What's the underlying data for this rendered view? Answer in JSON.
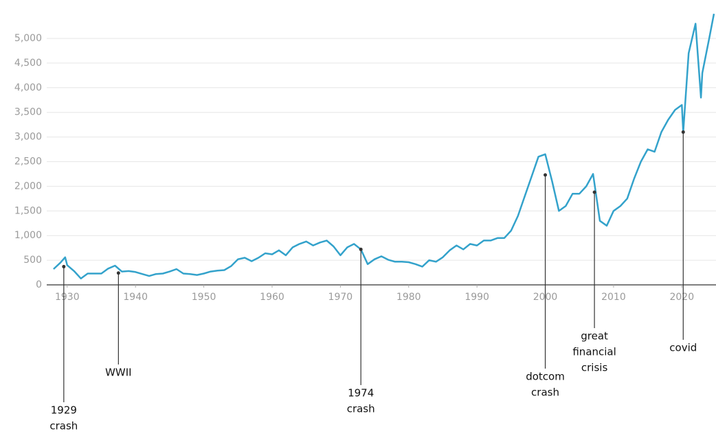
{
  "chart_data": {
    "type": "line",
    "x": [
      1928,
      1929,
      1929.7,
      1930,
      1931,
      1932,
      1933,
      1934,
      1935,
      1936,
      1937,
      1938,
      1939,
      1940,
      1941,
      1942,
      1943,
      1944,
      1945,
      1946,
      1947,
      1948,
      1949,
      1950,
      1951,
      1952,
      1953,
      1954,
      1955,
      1956,
      1957,
      1958,
      1959,
      1960,
      1961,
      1962,
      1963,
      1964,
      1965,
      1966,
      1967,
      1968,
      1969,
      1970,
      1971,
      1972,
      1973,
      1974,
      1975,
      1976,
      1977,
      1978,
      1979,
      1980,
      1981,
      1982,
      1983,
      1984,
      1985,
      1986,
      1987,
      1988,
      1989,
      1990,
      1991,
      1992,
      1993,
      1994,
      1995,
      1996,
      1997,
      1998,
      1999,
      2000,
      2001,
      2002,
      2003,
      2004,
      2005,
      2006,
      2007,
      2008,
      2009,
      2010,
      2011,
      2012,
      2013,
      2014,
      2015,
      2016,
      2017,
      2018,
      2019,
      2020,
      2020.2,
      2021,
      2022,
      2022.8,
      2023,
      2024,
      2024.7
    ],
    "series": [
      {
        "name": null,
        "color": "#33a2cb",
        "values": [
          320,
          450,
          560,
          400,
          280,
          130,
          230,
          230,
          230,
          330,
          390,
          270,
          280,
          260,
          220,
          180,
          220,
          230,
          270,
          320,
          230,
          220,
          200,
          230,
          270,
          290,
          300,
          380,
          520,
          550,
          480,
          550,
          640,
          620,
          700,
          600,
          760,
          830,
          880,
          800,
          860,
          900,
          780,
          600,
          760,
          830,
          720,
          420,
          520,
          580,
          510,
          470,
          470,
          460,
          420,
          370,
          500,
          470,
          560,
          700,
          800,
          720,
          830,
          800,
          900,
          900,
          950,
          950,
          1100,
          1400,
          1800,
          2200,
          2600,
          2650,
          2100,
          1500,
          1600,
          1850,
          1850,
          2000,
          2250,
          1300,
          1200,
          1500,
          1600,
          1750,
          2150,
          2500,
          2750,
          2700,
          3100,
          3350,
          3550,
          3650,
          3100,
          4700,
          5300,
          3800,
          4300,
          5000,
          5500
        ]
      }
    ],
    "xlim": [
      1927,
      2025
    ],
    "xticks": [
      1930,
      1940,
      1950,
      1960,
      1970,
      1980,
      1990,
      2000,
      2010,
      2020
    ],
    "ylim": [
      0,
      5200
    ],
    "yticks": [
      0,
      500,
      {
        "value": 1000,
        "label": "1,000"
      },
      {
        "value": 1500,
        "label": "1,500"
      },
      {
        "value": 2000,
        "label": "2,000"
      },
      {
        "value": 2500,
        "label": "2,500"
      },
      {
        "value": 3000,
        "label": "3,000"
      },
      {
        "value": 3500,
        "label": "3,500"
      },
      {
        "value": 4000,
        "label": "4,000"
      },
      {
        "value": 4500,
        "label": "4,500"
      },
      {
        "value": 5000,
        "label": "5,000"
      }
    ],
    "grid": true,
    "annotations": [
      {
        "x": 1929.5,
        "y": 370,
        "label": [
          "1929",
          "crash"
        ]
      },
      {
        "x": 1937.5,
        "y": 240,
        "label": [
          "WWII"
        ]
      },
      {
        "x": 1973,
        "y": 720,
        "label": [
          "1974",
          "crash"
        ]
      },
      {
        "x": 2000,
        "y": 2230,
        "label": [
          "dotcom",
          "crash"
        ]
      },
      {
        "x": 2007.2,
        "y": 1880,
        "label": [
          "great",
          "financial",
          "crisis"
        ]
      },
      {
        "x": 2020.2,
        "y": 3100,
        "label": [
          "covid"
        ]
      }
    ]
  }
}
